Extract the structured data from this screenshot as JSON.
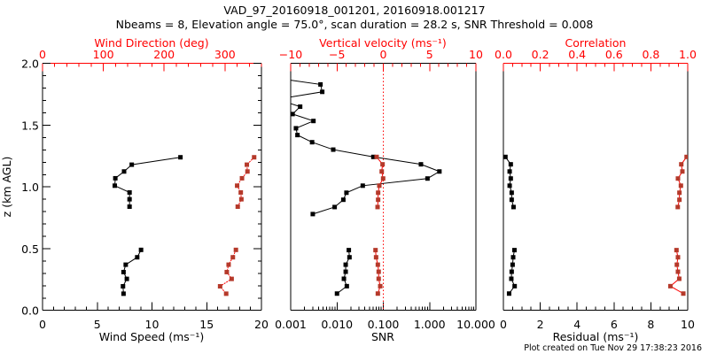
{
  "title_line1": "VAD_97_20160918_001201, 20160918.001217",
  "title_line2": "Nbeams = 8, Elevation angle = 75.0°, scan duration = 28.2 s, SNR Threshold = 0.008",
  "footer": "Plot created on Tue Nov 29 17:38:23 2016",
  "colors": {
    "primary": "#000000",
    "secondary_line": "#ff0000",
    "secondary_marker": "#b5392a",
    "reference_line": "#ff0000"
  },
  "chart_data": [
    {
      "type": "scatter",
      "name": "wind",
      "ylabel": "z (km AGL)",
      "ylim": [
        0,
        2
      ],
      "yticks": [
        "0.0",
        "0.5",
        "1.0",
        "1.5",
        "2.0"
      ],
      "xlabel": "Wind Speed (ms⁻¹)",
      "xlim": [
        0,
        20
      ],
      "xticks": [
        "0",
        "5",
        "10",
        "15",
        "20"
      ],
      "x2label": "Wind Direction (deg)",
      "x2lim": [
        0,
        360
      ],
      "x2ticks": [
        "0",
        "100",
        "200",
        "300"
      ],
      "series": [
        {
          "name": "Wind Speed",
          "axis": "bottom",
          "color": "#000000",
          "segments": [
            {
              "z": [
                1.24,
                1.18,
                1.125,
                1.07,
                1.01,
                0.955,
                0.9,
                0.84
              ],
              "values": [
                12.6,
                8.15,
                7.45,
                6.65,
                6.6,
                7.95,
                7.95,
                7.95
              ]
            },
            {
              "z": [
                0.49,
                0.43,
                0.37,
                0.31,
                0.255,
                0.195,
                0.135
              ],
              "values": [
                9.0,
                8.65,
                7.6,
                7.4,
                7.7,
                7.35,
                7.4
              ]
            }
          ]
        },
        {
          "name": "Wind Direction",
          "axis": "top",
          "color": "#ff0000",
          "dotted": true,
          "segments": [
            {
              "z": [
                1.24,
                1.18,
                1.125,
                1.07,
                1.01,
                0.955,
                0.9,
                0.84
              ],
              "values": [
                348,
                336,
                337,
                328,
                320,
                326,
                327,
                321
              ]
            },
            {
              "z": [
                0.49,
                0.43,
                0.37,
                0.31,
                0.255,
                0.195,
                0.135
              ],
              "values": [
                318,
                313,
                306,
                303,
                311,
                292,
                302
              ]
            }
          ]
        }
      ]
    },
    {
      "type": "scatter",
      "name": "snr-vertical-velocity",
      "xlabel": "SNR",
      "xscale": "log",
      "xlim": [
        0.001,
        10
      ],
      "xticks": [
        "0.001",
        "0.010",
        "0.100",
        "1.000",
        "10.000"
      ],
      "x2label": "Vertical velocity (ms⁻¹)",
      "x2lim": [
        -10,
        10
      ],
      "x2ticks": [
        "−10",
        "−5",
        "0",
        "5",
        "10"
      ],
      "reference_line": {
        "axis": "top",
        "value": 0
      },
      "series": [
        {
          "name": "SNR",
          "axis": "bottom",
          "color": "#000000",
          "segments": [
            {
              "z": [
                1.94,
                1.88,
                1.83,
                1.77,
                1.71,
                1.65,
                1.59,
                1.534,
                1.475,
                1.42,
                1.362,
                1.302,
                1.243,
                1.183,
                1.125,
                1.068,
                1.01,
                0.953,
                0.896,
                0.837,
                0.78
              ],
              "values": [
                0.0008,
                0.0005,
                0.0044,
                0.0048,
                0.0005,
                0.0016,
                0.0011,
                0.0031,
                0.0013,
                0.0014,
                0.0029,
                0.0083,
                0.061,
                0.65,
                1.63,
                0.9,
                0.036,
                0.016,
                0.0137,
                0.0089,
                0.003
              ]
            },
            {
              "z": [
                0.488,
                0.43,
                0.37,
                0.313,
                0.256,
                0.196,
                0.136
              ],
              "values": [
                0.018,
                0.0186,
                0.0154,
                0.0154,
                0.0141,
                0.0163,
                0.01
              ]
            }
          ]
        },
        {
          "name": "Vertical velocity",
          "axis": "top",
          "color": "#ff0000",
          "segments": [
            {
              "z": [
                1.243,
                1.183,
                1.125,
                1.068,
                1.01,
                0.953,
                0.896,
                0.837
              ],
              "values": [
                -0.72,
                -0.08,
                -0.17,
                -0.02,
                -0.43,
                -0.56,
                -0.56,
                -0.62
              ]
            },
            {
              "z": [
                0.488,
                0.43,
                0.37,
                0.313,
                0.256,
                0.196,
                0.136
              ],
              "values": [
                -0.84,
                -0.78,
                -0.59,
                -0.5,
                -0.5,
                -0.33,
                -0.59
              ]
            }
          ]
        }
      ]
    },
    {
      "type": "scatter",
      "name": "residual-correlation",
      "xlabel": "Residual (ms⁻¹)",
      "xlim": [
        0,
        10
      ],
      "xticks": [
        "0",
        "2",
        "4",
        "6",
        "8",
        "10"
      ],
      "x2label": "Correlation",
      "x2lim": [
        0,
        1
      ],
      "x2ticks": [
        "0.0",
        "0.2",
        "0.4",
        "0.6",
        "0.8",
        "1.0"
      ],
      "series": [
        {
          "name": "Residual",
          "axis": "bottom",
          "color": "#000000",
          "segments": [
            {
              "z": [
                1.243,
                1.183,
                1.125,
                1.068,
                1.01,
                0.953,
                0.896,
                0.837
              ],
              "values": [
                0.11,
                0.4,
                0.34,
                0.4,
                0.34,
                0.45,
                0.45,
                0.55
              ]
            },
            {
              "z": [
                0.488,
                0.43,
                0.37,
                0.313,
                0.256,
                0.196,
                0.136
              ],
              "values": [
                0.6,
                0.53,
                0.5,
                0.45,
                0.43,
                0.61,
                0.31
              ]
            }
          ]
        },
        {
          "name": "Correlation",
          "axis": "top",
          "color": "#ff0000",
          "segments": [
            {
              "z": [
                1.243,
                1.183,
                1.125,
                1.068,
                1.01,
                0.953,
                0.896,
                0.837
              ],
              "values": [
                0.994,
                0.965,
                0.971,
                0.947,
                0.963,
                0.955,
                0.955,
                0.946
              ]
            },
            {
              "z": [
                0.488,
                0.43,
                0.37,
                0.313,
                0.256,
                0.196,
                0.136
              ],
              "values": [
                0.939,
                0.947,
                0.941,
                0.947,
                0.954,
                0.906,
                0.976
              ]
            }
          ]
        }
      ]
    }
  ]
}
